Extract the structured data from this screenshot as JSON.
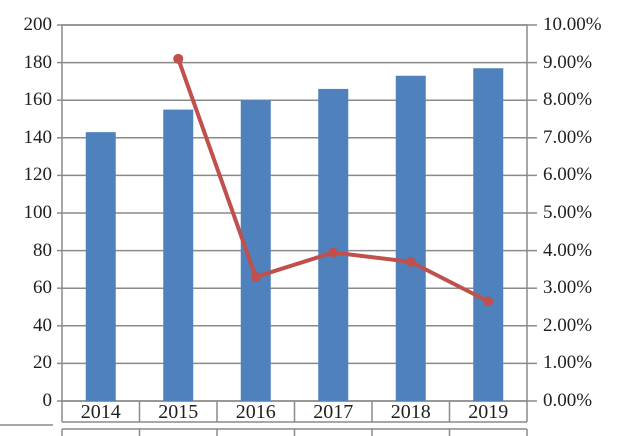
{
  "chart_data": {
    "type": "bar",
    "subtype": "combo-bar-line-dual-axis",
    "title": "",
    "legend": "none",
    "grid": true,
    "categories": [
      "2014",
      "2015",
      "2016",
      "2017",
      "2018",
      "2019"
    ],
    "series": [
      {
        "name": "bar-series",
        "type": "bar",
        "axis": "left",
        "color": "#4f81bd",
        "values": [
          143,
          155,
          160,
          166,
          173,
          177
        ]
      },
      {
        "name": "line-series",
        "type": "line",
        "axis": "right",
        "unit": "%",
        "color": "#c0504d",
        "values": [
          null,
          9.1,
          3.3,
          3.95,
          3.7,
          2.65
        ]
      }
    ],
    "left_axis": {
      "min": 0,
      "max": 200,
      "step": 20,
      "tick_labels": [
        "0",
        "20",
        "40",
        "60",
        "80",
        "100",
        "120",
        "140",
        "160",
        "180",
        "200"
      ]
    },
    "right_axis": {
      "min": 0,
      "max": 10,
      "step": 1,
      "tick_labels": [
        "0.00%",
        "1.00%",
        "2.00%",
        "3.00%",
        "4.00%",
        "5.00%",
        "6.00%",
        "7.00%",
        "8.00%",
        "9.00%",
        "10.00%"
      ]
    },
    "colors": {
      "gridline": "#8a8a8a",
      "text": "#1f1f1f",
      "background": "#ffffff"
    }
  }
}
